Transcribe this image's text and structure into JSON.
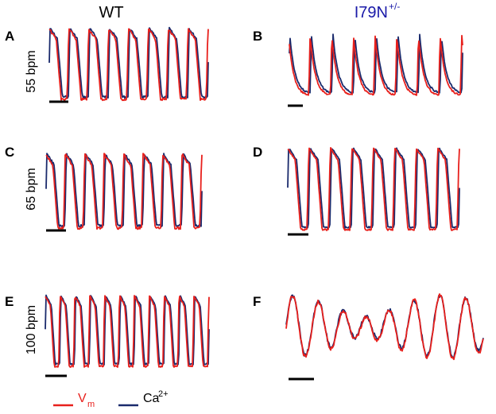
{
  "columns": [
    {
      "title": "WT"
    },
    {
      "title": "I79N",
      "title_sup": "+/-"
    }
  ],
  "panels": [
    {
      "letter": "A"
    },
    {
      "letter": "B"
    },
    {
      "letter": "C"
    },
    {
      "letter": "D"
    },
    {
      "letter": "E"
    },
    {
      "letter": "F"
    }
  ],
  "rows": [
    {
      "label": "55 bpm"
    },
    {
      "label": "65 bpm"
    },
    {
      "label": "100 bpm"
    }
  ],
  "legend": [
    {
      "text": "V",
      "sub": "m"
    },
    {
      "text": "Ca",
      "sup": "2+"
    }
  ]
}
